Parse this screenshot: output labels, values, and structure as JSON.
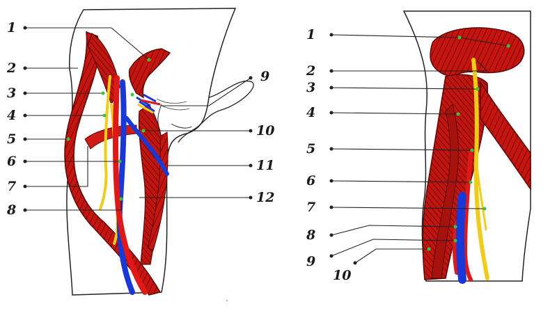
{
  "colors": {
    "muscle": "#c8140f",
    "muscle_dark": "#5a0706",
    "artery": "#e01818",
    "vein": "#1838d8",
    "nerve": "#f0cc1a",
    "outline": "#222222",
    "pointer": "#3cc33c"
  },
  "left_figure": {
    "labels": [
      "1",
      "2",
      "3",
      "4",
      "5",
      "6",
      "7",
      "8",
      "9",
      "10",
      "11",
      "12"
    ]
  },
  "right_figure": {
    "labels": [
      "1",
      "2",
      "3",
      "4",
      "5",
      "6",
      "7",
      "8",
      "9",
      "10"
    ]
  }
}
